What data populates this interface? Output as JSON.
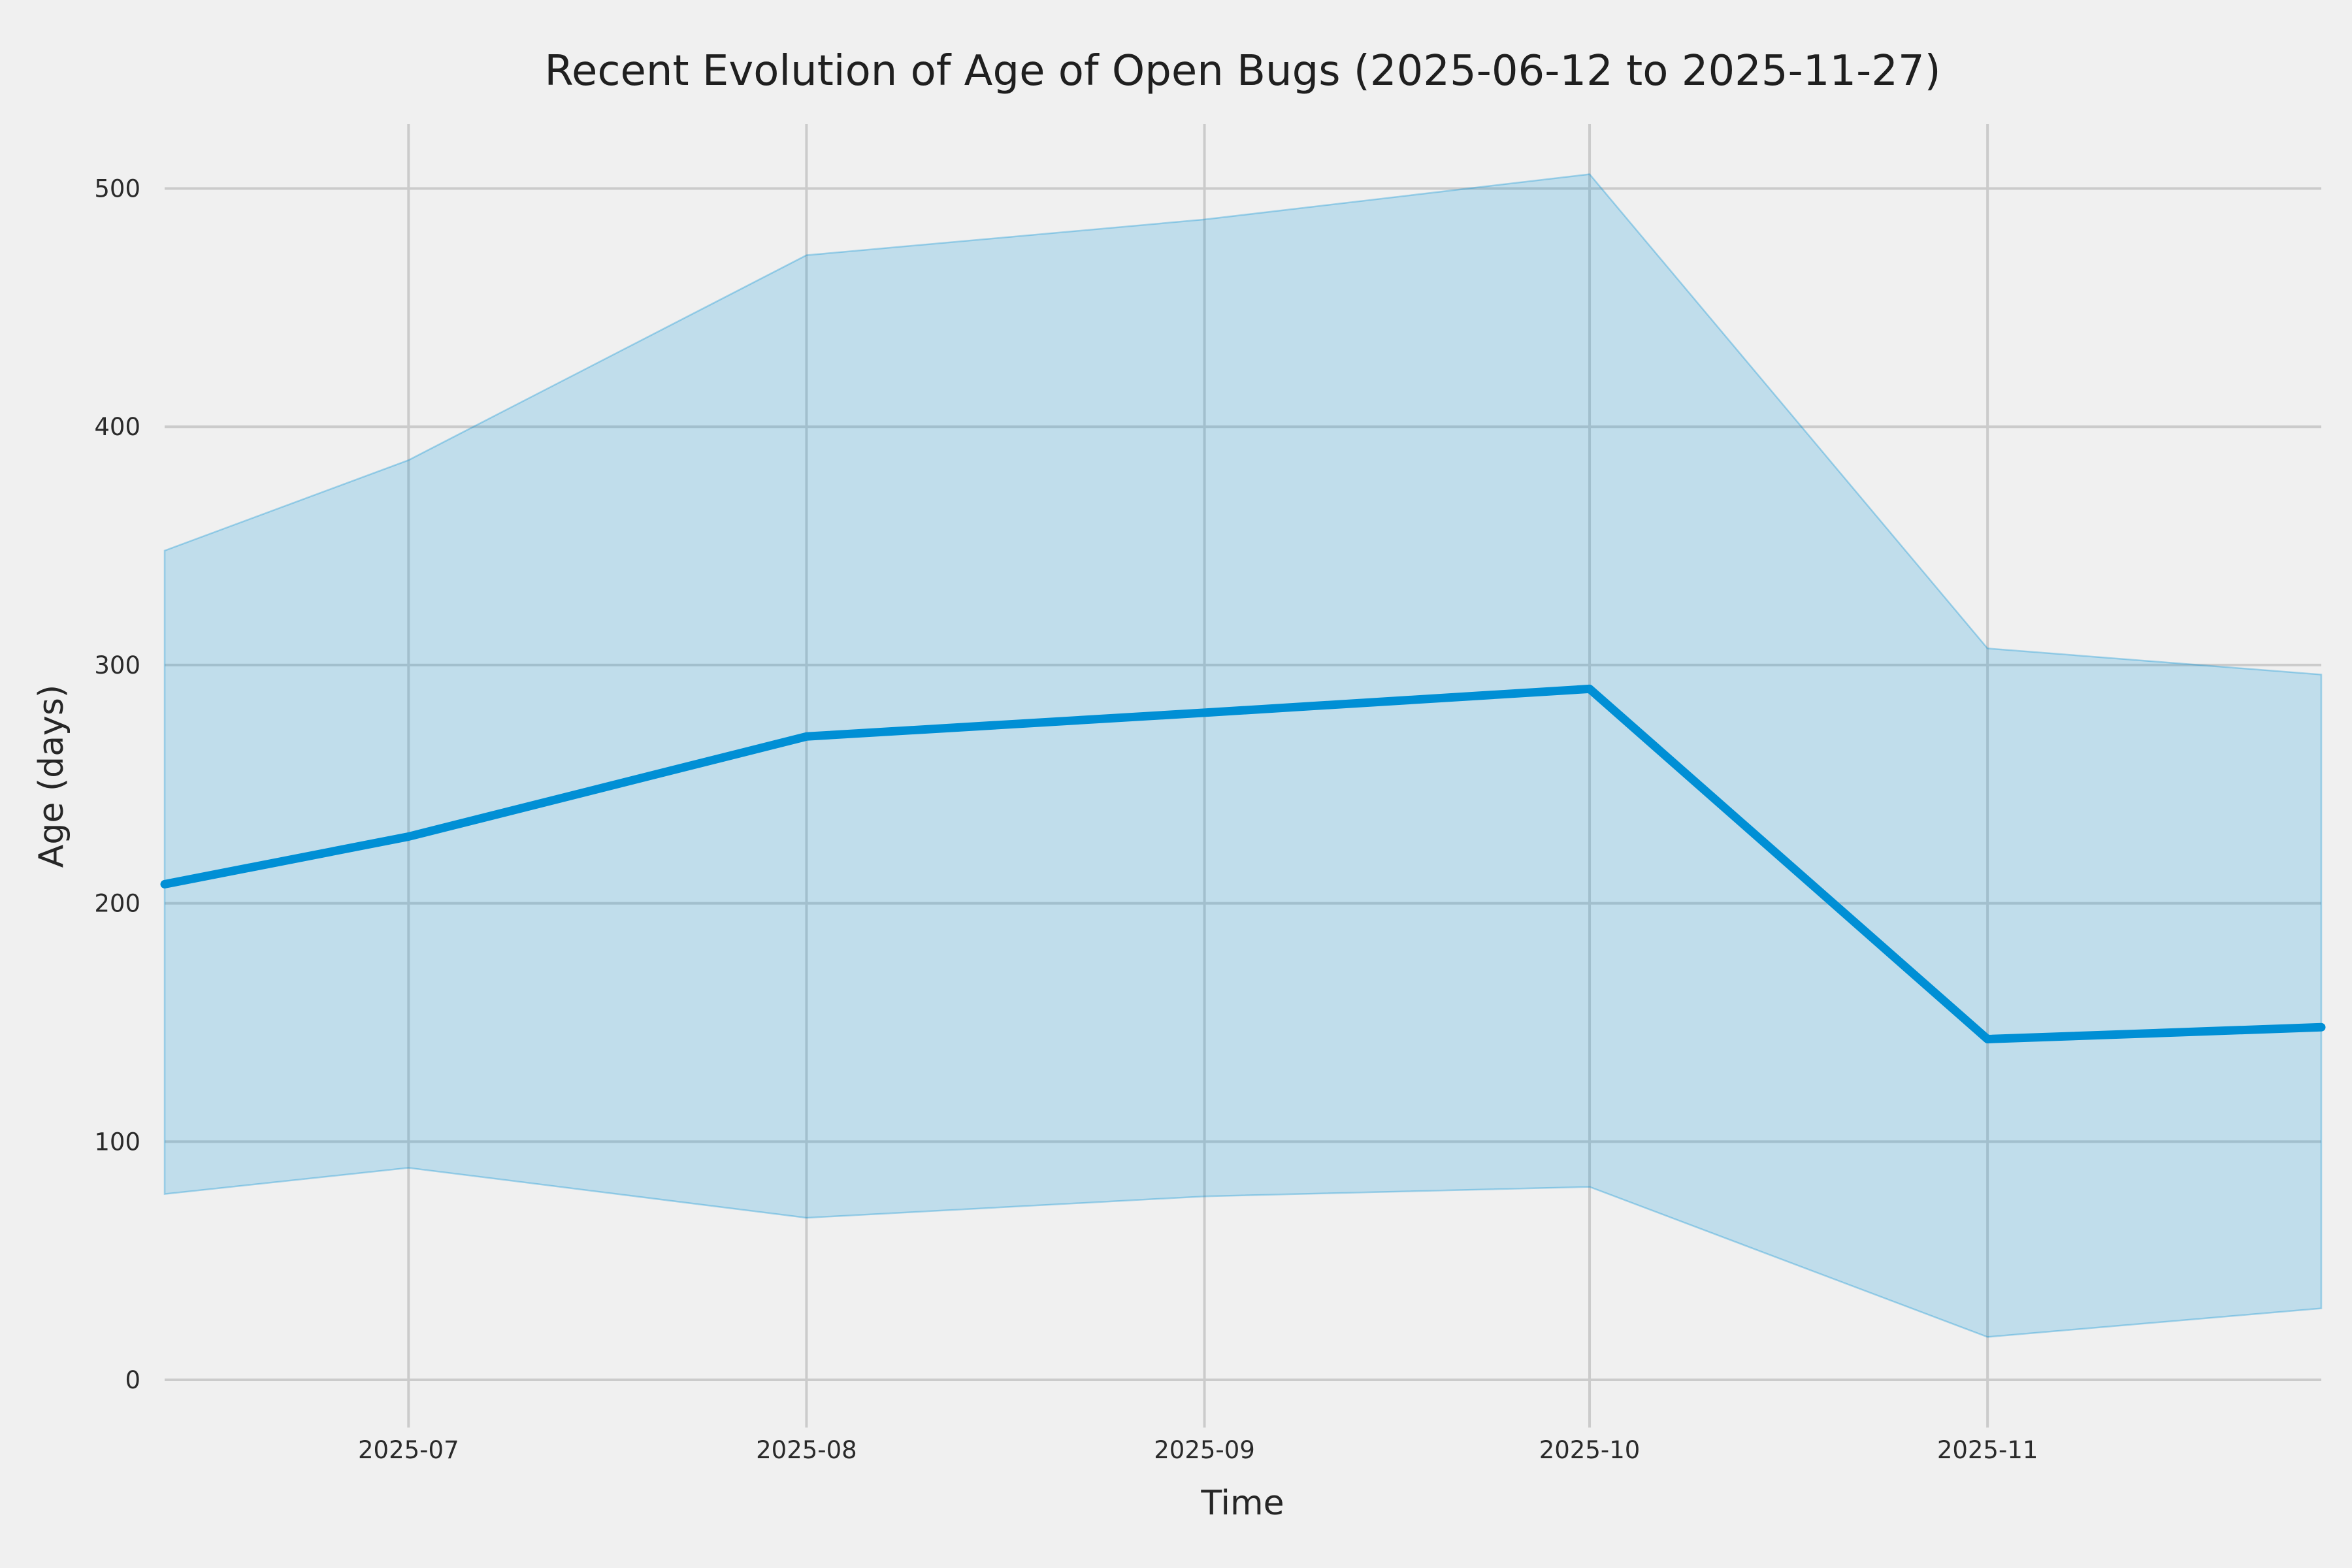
{
  "page": {
    "background_color": "#f0f0f0"
  },
  "chart_data": {
    "type": "line",
    "title": "Recent Evolution of Age of Open Bugs (2025-06-12 to 2025-11-27)",
    "xlabel": "Time",
    "ylabel": "Age (days)",
    "grid": true,
    "legend": false,
    "band": "shaded min–max range around the median line",
    "x_dates": [
      "2025-06-12",
      "2025-07-01",
      "2025-08-01",
      "2025-09-01",
      "2025-10-01",
      "2025-11-01",
      "2025-11-27"
    ],
    "x_days_offset": [
      0,
      19,
      50,
      81,
      111,
      142,
      168
    ],
    "series": [
      {
        "name": "median_age_days",
        "values": [
          208,
          228,
          270,
          280,
          290,
          143,
          148
        ]
      },
      {
        "name": "band_upper_days",
        "values": [
          348,
          386,
          472,
          487,
          506,
          307,
          296
        ]
      },
      {
        "name": "band_lower_days",
        "values": [
          78,
          89,
          68,
          77,
          81,
          18,
          30
        ]
      }
    ],
    "x_ticks": [
      {
        "label": "2025-07",
        "day": 19
      },
      {
        "label": "2025-08",
        "day": 50
      },
      {
        "label": "2025-09",
        "day": 81
      },
      {
        "label": "2025-10",
        "day": 111
      },
      {
        "label": "2025-11",
        "day": 142
      }
    ],
    "y_ticks": [
      {
        "label": "0",
        "value": 0
      },
      {
        "label": "100",
        "value": 100
      },
      {
        "label": "200",
        "value": 200
      },
      {
        "label": "300",
        "value": 300
      },
      {
        "label": "400",
        "value": 400
      },
      {
        "label": "500",
        "value": 500
      }
    ],
    "xlim_days": [
      0,
      168
    ],
    "ylim": [
      -20,
      527
    ],
    "colors": {
      "line": "#008fd5",
      "band_fill": "rgba(0,143,213,0.20)",
      "band_edge": "rgba(0,143,213,0.32)",
      "grid": "#cbcbcb",
      "background": "#f0f0f0",
      "text": "#262626"
    }
  }
}
